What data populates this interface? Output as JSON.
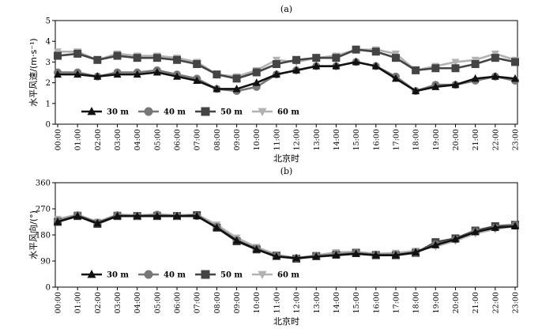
{
  "colors": {
    "30 m": "#111111",
    "40 m": "#777777",
    "50 m": "#444444",
    "60 m": "#b2b2b2"
  },
  "chart_data": [
    {
      "type": "line",
      "panel_label": "(a)",
      "xlabel": "北京时",
      "ylabel": "水平风速/(m·s⁻¹)",
      "ylim": [
        0,
        5
      ],
      "yticks": [
        0,
        1,
        2,
        3,
        4,
        5
      ],
      "x": [
        "00:00",
        "01:00",
        "02:00",
        "03:00",
        "04:00",
        "05:00",
        "06:00",
        "07:00",
        "08:00",
        "09:00",
        "10:00",
        "11:00",
        "12:00",
        "13:00",
        "14:00",
        "15:00",
        "16:00",
        "17:00",
        "18:00",
        "19:00",
        "20:00",
        "21:00",
        "22:00",
        "23:00"
      ],
      "legend_position": "bottom-left",
      "series": [
        {
          "name": "30 m",
          "marker": "triangle",
          "values": [
            2.4,
            2.4,
            2.3,
            2.4,
            2.4,
            2.5,
            2.3,
            2.1,
            1.7,
            1.7,
            2.0,
            2.4,
            2.6,
            2.8,
            2.8,
            3.0,
            2.8,
            2.2,
            1.6,
            1.8,
            1.9,
            2.2,
            2.3,
            2.2
          ]
        },
        {
          "name": "40 m",
          "marker": "circle",
          "values": [
            2.5,
            2.5,
            2.3,
            2.5,
            2.5,
            2.6,
            2.4,
            2.2,
            1.7,
            1.6,
            1.8,
            2.4,
            2.6,
            2.8,
            2.8,
            3.0,
            2.8,
            2.3,
            1.6,
            1.9,
            1.9,
            2.1,
            2.3,
            2.1
          ]
        },
        {
          "name": "50 m",
          "marker": "square",
          "values": [
            3.3,
            3.4,
            3.1,
            3.3,
            3.2,
            3.2,
            3.1,
            2.9,
            2.4,
            2.2,
            2.5,
            2.9,
            3.1,
            3.2,
            3.2,
            3.6,
            3.5,
            3.2,
            2.6,
            2.7,
            2.7,
            2.9,
            3.2,
            3.0
          ]
        },
        {
          "name": "60 m",
          "marker": "inverted-triangle",
          "values": [
            3.5,
            3.5,
            3.1,
            3.4,
            3.3,
            3.3,
            3.2,
            3.0,
            2.4,
            2.3,
            2.6,
            3.1,
            3.0,
            3.2,
            3.3,
            3.6,
            3.6,
            3.4,
            2.6,
            2.8,
            3.0,
            3.1,
            3.4,
            3.1
          ]
        }
      ]
    },
    {
      "type": "line",
      "panel_label": "(b)",
      "xlabel": "北京时",
      "ylabel": "水平风向/(°)",
      "ylim": [
        0,
        360
      ],
      "yticks": [
        0,
        90,
        180,
        270,
        360
      ],
      "x": [
        "00:00",
        "01:00",
        "02:00",
        "03:00",
        "04:00",
        "05:00",
        "06:00",
        "07:00",
        "08:00",
        "09:00",
        "10:00",
        "11:00",
        "12:00",
        "13:00",
        "14:00",
        "15:00",
        "16:00",
        "17:00",
        "18:00",
        "19:00",
        "20:00",
        "21:00",
        "22:00",
        "23:00"
      ],
      "legend_position": "bottom-left",
      "series": [
        {
          "name": "30 m",
          "marker": "triangle",
          "values": [
            225,
            245,
            220,
            245,
            245,
            245,
            245,
            245,
            205,
            160,
            130,
            105,
            100,
            105,
            110,
            115,
            110,
            110,
            120,
            145,
            165,
            190,
            205,
            210
          ]
        },
        {
          "name": "40 m",
          "marker": "circle",
          "values": [
            228,
            248,
            222,
            248,
            245,
            250,
            245,
            245,
            208,
            162,
            132,
            108,
            100,
            108,
            113,
            118,
            112,
            112,
            120,
            148,
            165,
            192,
            205,
            215
          ]
        },
        {
          "name": "50 m",
          "marker": "square",
          "values": [
            225,
            245,
            218,
            245,
            245,
            245,
            245,
            248,
            205,
            158,
            130,
            108,
            98,
            107,
            112,
            118,
            110,
            110,
            118,
            155,
            168,
            195,
            210,
            215
          ]
        },
        {
          "name": "60 m",
          "marker": "inverted-triangle",
          "values": [
            235,
            250,
            225,
            250,
            248,
            250,
            248,
            250,
            215,
            170,
            138,
            112,
            100,
            110,
            120,
            122,
            115,
            118,
            125,
            140,
            160,
            185,
            200,
            210
          ]
        }
      ]
    }
  ]
}
